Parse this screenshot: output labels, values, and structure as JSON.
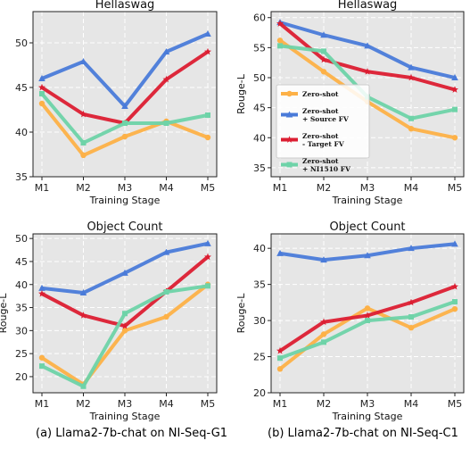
{
  "colors": {
    "zero_shot": "#FDB147",
    "source_fv": "#4A7BD9",
    "target_fv": "#DC1E32",
    "ni1510_fv": "#6ED3A8",
    "plot_bg": "#E6E6E6",
    "grid": "#FFFFFF"
  },
  "legend": {
    "placement": "center-left",
    "entries": [
      {
        "series": "zero_shot",
        "lines": [
          "Zero-shot"
        ]
      },
      {
        "series": "source_fv",
        "lines": [
          "Zero-shot",
          "+ Source FV"
        ]
      },
      {
        "series": "target_fv",
        "lines": [
          "Zero-shot",
          "- Target FV"
        ]
      },
      {
        "series": "ni1510_fv",
        "lines": [
          "Zero-shot",
          "+ NI1510 FV"
        ]
      }
    ]
  },
  "captions": {
    "a": "(a) Llama2-7b-chat on NI-Seq-G1",
    "b": "(b) Llama2-7b-chat on NI-Seq-C1"
  },
  "chart_data": [
    {
      "type": "line",
      "title": "Hellaswag",
      "xlabel": "Training Stage",
      "ylabel": "",
      "categories": [
        "M1",
        "M2",
        "M3",
        "M4",
        "M5"
      ],
      "ylim": [
        35,
        53.5
      ],
      "yticks": [
        35,
        40,
        45,
        50
      ],
      "grid": true,
      "series": [
        {
          "key": "zero_shot",
          "values": [
            43.2,
            37.4,
            39.5,
            41.2,
            39.4
          ]
        },
        {
          "key": "source_fv",
          "values": [
            46.0,
            47.9,
            42.9,
            49.0,
            51.0
          ]
        },
        {
          "key": "target_fv",
          "values": [
            45.0,
            42.0,
            41.0,
            45.9,
            49.0
          ]
        },
        {
          "key": "ni1510_fv",
          "values": [
            44.3,
            38.8,
            41.0,
            41.0,
            41.9
          ]
        }
      ]
    },
    {
      "type": "line",
      "title": "Hellaswag",
      "xlabel": "Training Stage",
      "ylabel": "Rouge-L",
      "categories": [
        "M1",
        "M2",
        "M3",
        "M4",
        "M5"
      ],
      "ylim": [
        33.5,
        61
      ],
      "yticks": [
        35,
        40,
        45,
        50,
        55,
        60
      ],
      "grid": true,
      "legend": true,
      "series": [
        {
          "key": "zero_shot",
          "values": [
            56.2,
            51.0,
            46.0,
            41.5,
            40.0
          ]
        },
        {
          "key": "source_fv",
          "values": [
            59.2,
            57.1,
            55.3,
            51.7,
            50.0
          ]
        },
        {
          "key": "target_fv",
          "values": [
            59.0,
            53.0,
            51.0,
            50.0,
            48.0
          ]
        },
        {
          "key": "ni1510_fv",
          "values": [
            55.3,
            54.4,
            46.8,
            43.2,
            44.7
          ]
        }
      ]
    },
    {
      "type": "line",
      "title": "Object Count",
      "xlabel": "Training Stage",
      "ylabel": "Rouge-L",
      "categories": [
        "M1",
        "M2",
        "M3",
        "M4",
        "M5"
      ],
      "ylim": [
        16.5,
        51
      ],
      "yticks": [
        20,
        25,
        30,
        35,
        40,
        45,
        50
      ],
      "grid": true,
      "series": [
        {
          "key": "zero_shot",
          "values": [
            24.1,
            18.3,
            30.0,
            33.0,
            40.0
          ]
        },
        {
          "key": "source_fv",
          "values": [
            39.2,
            38.2,
            42.5,
            47.0,
            48.9
          ]
        },
        {
          "key": "target_fv",
          "values": [
            38.0,
            33.3,
            31.0,
            38.5,
            46.0
          ]
        },
        {
          "key": "ni1510_fv",
          "values": [
            22.3,
            17.9,
            33.7,
            38.4,
            39.7
          ]
        }
      ]
    },
    {
      "type": "line",
      "title": "Object Count",
      "xlabel": "Training Stage",
      "ylabel": "Rouge-L",
      "categories": [
        "M1",
        "M2",
        "M3",
        "M4",
        "M5"
      ],
      "ylim": [
        20,
        42
      ],
      "yticks": [
        20,
        25,
        30,
        35,
        40
      ],
      "grid": true,
      "series": [
        {
          "key": "zero_shot",
          "values": [
            23.3,
            28.1,
            31.7,
            29.0,
            31.6
          ]
        },
        {
          "key": "source_fv",
          "values": [
            39.3,
            38.4,
            39.0,
            40.0,
            40.6
          ]
        },
        {
          "key": "target_fv",
          "values": [
            25.8,
            29.8,
            30.7,
            32.5,
            34.7
          ]
        },
        {
          "key": "ni1510_fv",
          "values": [
            24.8,
            27.0,
            30.0,
            30.5,
            32.6
          ]
        }
      ]
    }
  ]
}
